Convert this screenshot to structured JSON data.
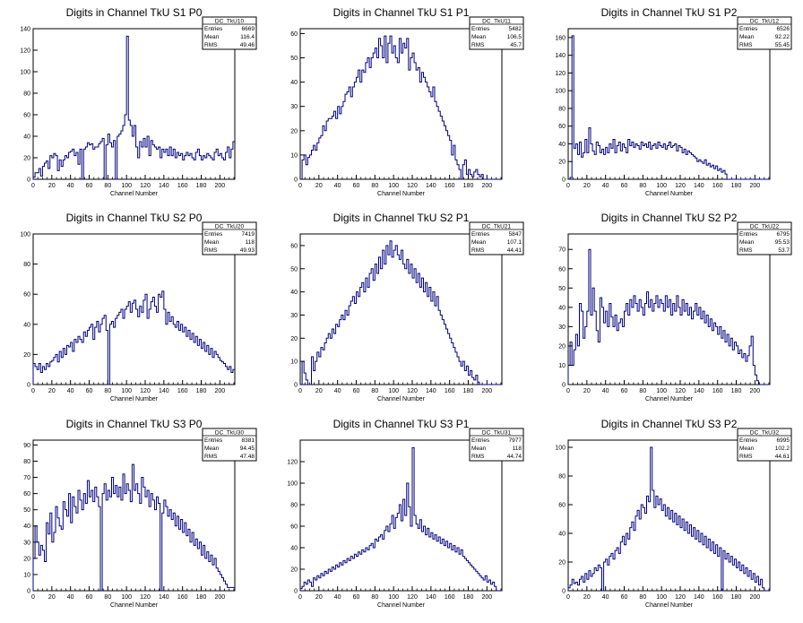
{
  "canvas": {
    "background": "#ffffff",
    "line_color": "#000080"
  },
  "chart_data": [
    {
      "type": "histogram",
      "title": "Digits in Channel TkU S1 P0",
      "xlabel": "Channel Number",
      "ylabel": "",
      "xlim": [
        0,
        216
      ],
      "ylim": [
        0,
        140
      ],
      "xticks": [
        0,
        20,
        40,
        60,
        80,
        100,
        120,
        140,
        160,
        180,
        200
      ],
      "yticks": [
        0,
        20,
        40,
        60,
        80,
        100,
        120,
        140
      ],
      "stats": {
        "name": "DC_TkU10",
        "entries": "6669",
        "mean": "116.4",
        "rms": "49.46"
      },
      "bin_width": 2,
      "values": [
        2,
        6,
        6,
        10,
        3,
        12,
        15,
        17,
        10,
        22,
        20,
        24,
        22,
        8,
        18,
        12,
        18,
        22,
        20,
        25,
        26,
        28,
        22,
        25,
        14,
        28,
        0,
        28,
        30,
        34,
        32,
        33,
        28,
        30,
        30,
        33,
        35,
        38,
        0,
        32,
        42,
        34,
        30,
        36,
        0,
        40,
        42,
        45,
        50,
        60,
        133,
        55,
        50,
        40,
        50,
        30,
        20,
        35,
        30,
        38,
        30,
        40,
        22,
        36,
        32,
        30,
        28,
        30,
        20,
        28,
        25,
        28,
        22,
        30,
        22,
        28,
        20,
        25,
        22,
        24,
        18,
        22,
        25,
        22,
        24,
        20,
        18,
        25,
        28,
        22,
        18,
        22,
        20,
        24,
        22,
        20,
        18,
        25,
        28,
        22,
        24,
        20,
        18,
        25,
        30,
        20,
        28,
        35
      ]
    },
    {
      "type": "histogram",
      "title": "Digits in Channel TkU S1 P1",
      "xlabel": "Channel Number",
      "ylabel": "",
      "xlim": [
        0,
        216
      ],
      "ylim": [
        0,
        62
      ],
      "xticks": [
        0,
        20,
        40,
        60,
        80,
        100,
        120,
        140,
        160,
        180,
        200
      ],
      "yticks": [
        0,
        10,
        20,
        30,
        40,
        50,
        60
      ],
      "stats": {
        "name": "DC_TkU11",
        "entries": "5482",
        "mean": "106.5",
        "rms": "45.7"
      },
      "bin_width": 2,
      "values": [
        0,
        8,
        10,
        6,
        9,
        10,
        12,
        14,
        12,
        15,
        17,
        18,
        22,
        20,
        24,
        25,
        25,
        26,
        28,
        25,
        30,
        27,
        30,
        32,
        35,
        36,
        38,
        34,
        38,
        40,
        42,
        45,
        40,
        45,
        44,
        48,
        50,
        46,
        50,
        52,
        54,
        50,
        58,
        55,
        50,
        59,
        48,
        56,
        59,
        52,
        55,
        50,
        48,
        58,
        52,
        56,
        54,
        58,
        45,
        50,
        52,
        48,
        45,
        46,
        40,
        44,
        42,
        40,
        38,
        36,
        34,
        38,
        32,
        30,
        28,
        26,
        24,
        22,
        20,
        18,
        16,
        10,
        14,
        8,
        6,
        4,
        0,
        6,
        8,
        2,
        4,
        2,
        1,
        3,
        4,
        2,
        1,
        2,
        0,
        0,
        0,
        0,
        0,
        0,
        0,
        0,
        0,
        0
      ]
    },
    {
      "type": "histogram",
      "title": "Digits in Channel TkU S1 P2",
      "xlabel": "Channel Number",
      "ylabel": "",
      "xlim": [
        0,
        216
      ],
      "ylim": [
        0,
        170
      ],
      "xticks": [
        0,
        20,
        40,
        60,
        80,
        100,
        120,
        140,
        160,
        180,
        200
      ],
      "yticks": [
        0,
        20,
        40,
        60,
        80,
        100,
        120,
        140,
        160
      ],
      "stats": {
        "name": "DC_TkU12",
        "entries": "6526",
        "mean": "92.22",
        "rms": "55.45"
      },
      "bin_width": 2,
      "values": [
        0,
        2,
        162,
        35,
        40,
        28,
        42,
        25,
        30,
        45,
        30,
        58,
        40,
        32,
        28,
        42,
        38,
        30,
        34,
        28,
        36,
        30,
        40,
        35,
        45,
        30,
        38,
        42,
        32,
        40,
        36,
        30,
        45,
        38,
        42,
        36,
        40,
        38,
        34,
        42,
        38,
        40,
        36,
        42,
        34,
        38,
        40,
        35,
        42,
        38,
        36,
        40,
        34,
        38,
        42,
        36,
        38,
        40,
        32,
        38,
        36,
        30,
        34,
        28,
        32,
        30,
        28,
        26,
        24,
        20,
        22,
        20,
        18,
        22,
        16,
        18,
        14,
        16,
        12,
        15,
        10,
        12,
        8,
        10,
        6,
        0,
        0,
        0,
        0,
        0,
        0,
        0,
        0,
        0,
        0,
        0,
        0,
        0,
        0,
        0,
        0,
        0,
        0,
        0,
        0,
        0,
        0,
        0
      ]
    },
    {
      "type": "histogram",
      "title": "Digits in Channel TkU S2 P0",
      "xlabel": "Channel Number",
      "ylabel": "",
      "xlim": [
        0,
        216
      ],
      "ylim": [
        0,
        100
      ],
      "xticks": [
        0,
        20,
        40,
        60,
        80,
        100,
        120,
        140,
        160,
        180,
        200
      ],
      "yticks": [
        0,
        20,
        40,
        60,
        80,
        100
      ],
      "stats": {
        "name": "DC_TkU20",
        "entries": "7419",
        "mean": "118",
        "rms": "49.93"
      },
      "bin_width": 2,
      "values": [
        14,
        12,
        10,
        14,
        8,
        12,
        10,
        14,
        12,
        15,
        16,
        18,
        20,
        15,
        22,
        18,
        24,
        20,
        26,
        25,
        28,
        22,
        30,
        28,
        32,
        30,
        28,
        35,
        32,
        36,
        38,
        40,
        30,
        38,
        42,
        35,
        40,
        44,
        46,
        36,
        0,
        40,
        42,
        38,
        44,
        46,
        48,
        50,
        44,
        50,
        52,
        55,
        48,
        54,
        56,
        50,
        45,
        52,
        48,
        56,
        60,
        44,
        50,
        55,
        58,
        52,
        48,
        60,
        58,
        62,
        50,
        40,
        48,
        42,
        45,
        40,
        38,
        42,
        36,
        40,
        35,
        38,
        32,
        36,
        30,
        34,
        28,
        32,
        26,
        30,
        24,
        28,
        22,
        26,
        20,
        24,
        18,
        22,
        20,
        18,
        16,
        15,
        14,
        12,
        10,
        12,
        8,
        10
      ]
    },
    {
      "type": "histogram",
      "title": "Digits in Channel TkU S2 P1",
      "xlabel": "Channel Number",
      "ylabel": "",
      "xlim": [
        0,
        216
      ],
      "ylim": [
        0,
        65
      ],
      "xticks": [
        0,
        20,
        40,
        60,
        80,
        100,
        120,
        140,
        160,
        180,
        200
      ],
      "yticks": [
        0,
        10,
        20,
        30,
        40,
        50,
        60
      ],
      "stats": {
        "name": "DC_TkU21",
        "entries": "5847",
        "mean": "107.1",
        "rms": "44.41"
      },
      "bin_width": 2,
      "values": [
        0,
        10,
        5,
        2,
        0,
        0,
        12,
        6,
        10,
        14,
        12,
        16,
        15,
        18,
        20,
        22,
        20,
        24,
        22,
        26,
        25,
        28,
        30,
        28,
        32,
        30,
        34,
        36,
        38,
        35,
        40,
        38,
        42,
        44,
        40,
        46,
        42,
        48,
        50,
        45,
        52,
        48,
        55,
        50,
        58,
        52,
        60,
        56,
        62,
        55,
        58,
        60,
        56,
        54,
        58,
        52,
        50,
        54,
        48,
        52,
        46,
        50,
        44,
        48,
        42,
        46,
        40,
        44,
        38,
        42,
        36,
        40,
        34,
        38,
        32,
        30,
        28,
        26,
        24,
        22,
        20,
        18,
        16,
        14,
        12,
        10,
        8,
        10,
        6,
        8,
        4,
        6,
        3,
        2,
        4,
        1,
        0,
        0,
        0,
        0,
        0,
        0,
        0,
        0,
        0,
        0,
        0,
        0
      ]
    },
    {
      "type": "histogram",
      "title": "Digits in Channel TkU S2 P2",
      "xlabel": "Channel Number",
      "ylabel": "",
      "xlim": [
        0,
        216
      ],
      "ylim": [
        0,
        78
      ],
      "xticks": [
        0,
        20,
        40,
        60,
        80,
        100,
        120,
        140,
        160,
        180,
        200
      ],
      "yticks": [
        0,
        10,
        20,
        30,
        40,
        50,
        60,
        70
      ],
      "stats": {
        "name": "DC_TkU22",
        "entries": "6795",
        "mean": "95.53",
        "rms": "53.7"
      },
      "bin_width": 2,
      "values": [
        10,
        22,
        10,
        18,
        26,
        20,
        42,
        38,
        24,
        30,
        38,
        70,
        36,
        50,
        38,
        28,
        22,
        45,
        40,
        32,
        38,
        30,
        42,
        35,
        30,
        36,
        28,
        32,
        34,
        30,
        38,
        42,
        36,
        44,
        40,
        46,
        42,
        38,
        44,
        40,
        36,
        42,
        48,
        40,
        44,
        38,
        42,
        46,
        40,
        44,
        42,
        38,
        46,
        40,
        44,
        36,
        42,
        38,
        46,
        40,
        36,
        44,
        38,
        42,
        36,
        40,
        34,
        38,
        42,
        36,
        40,
        34,
        38,
        32,
        36,
        30,
        34,
        28,
        32,
        30,
        26,
        30,
        24,
        28,
        22,
        26,
        20,
        24,
        18,
        22,
        20,
        16,
        18,
        14,
        16,
        12,
        15,
        20,
        25,
        10,
        5,
        2,
        0,
        0,
        0,
        0,
        0,
        0
      ]
    },
    {
      "type": "histogram",
      "title": "Digits in Channel TkU S3 P0",
      "xlabel": "Channel Number",
      "ylabel": "",
      "xlim": [
        0,
        216
      ],
      "ylim": [
        0,
        93
      ],
      "xticks": [
        0,
        20,
        40,
        60,
        80,
        100,
        120,
        140,
        160,
        180,
        200
      ],
      "yticks": [
        0,
        10,
        20,
        30,
        40,
        50,
        60,
        70,
        80,
        90
      ],
      "stats": {
        "name": "DC_TkU30",
        "entries": "8381",
        "mean": "94.45",
        "rms": "47.48"
      },
      "bin_width": 2,
      "values": [
        20,
        40,
        30,
        22,
        28,
        25,
        18,
        42,
        35,
        48,
        30,
        36,
        52,
        45,
        40,
        38,
        55,
        50,
        46,
        60,
        42,
        58,
        52,
        48,
        62,
        56,
        50,
        60,
        54,
        68,
        58,
        62,
        55,
        64,
        58,
        52,
        0,
        60,
        66,
        56,
        62,
        58,
        70,
        60,
        65,
        58,
        64,
        56,
        72,
        60,
        66,
        62,
        55,
        78,
        62,
        66,
        60,
        54,
        70,
        64,
        58,
        62,
        52,
        60,
        56,
        50,
        58,
        54,
        0,
        48,
        56,
        52,
        46,
        50,
        44,
        48,
        40,
        46,
        38,
        44,
        36,
        42,
        34,
        38,
        30,
        36,
        28,
        32,
        26,
        30,
        22,
        28,
        20,
        24,
        18,
        22,
        16,
        20,
        14,
        12,
        10,
        8,
        6,
        4,
        2,
        2,
        2,
        2
      ]
    },
    {
      "type": "histogram",
      "title": "Digits in Channel TkU S3 P1",
      "xlabel": "Channel Number",
      "ylabel": "",
      "xlim": [
        0,
        216
      ],
      "ylim": [
        0,
        140
      ],
      "xticks": [
        0,
        20,
        40,
        60,
        80,
        100,
        120,
        140,
        160,
        180,
        200
      ],
      "yticks": [
        0,
        20,
        40,
        60,
        80,
        100,
        120
      ],
      "stats": {
        "name": "DC_TkU31",
        "entries": "7977",
        "mean": "118",
        "rms": "44.74"
      },
      "bin_width": 2,
      "values": [
        2,
        4,
        8,
        6,
        10,
        8,
        4,
        12,
        10,
        14,
        12,
        16,
        14,
        18,
        16,
        20,
        18,
        22,
        20,
        24,
        22,
        26,
        24,
        28,
        26,
        30,
        28,
        32,
        30,
        34,
        32,
        36,
        34,
        38,
        36,
        40,
        38,
        42,
        44,
        40,
        48,
        46,
        50,
        52,
        48,
        56,
        60,
        55,
        62,
        70,
        58,
        68,
        72,
        80,
        65,
        85,
        70,
        100,
        78,
        60,
        133,
        70,
        62,
        58,
        66,
        55,
        60,
        52,
        58,
        50,
        54,
        48,
        52,
        46,
        50,
        44,
        48,
        42,
        46,
        40,
        44,
        38,
        42,
        36,
        40,
        34,
        38,
        32,
        30,
        28,
        26,
        24,
        22,
        20,
        18,
        16,
        14,
        12,
        10,
        14,
        8,
        10,
        6,
        8,
        4,
        0,
        0,
        0
      ]
    },
    {
      "type": "histogram",
      "title": "Digits in Channel TkU S3 P2",
      "xlabel": "Channel Number",
      "ylabel": "",
      "xlim": [
        0,
        216
      ],
      "ylim": [
        0,
        105
      ],
      "xticks": [
        0,
        20,
        40,
        60,
        80,
        100,
        120,
        140,
        160,
        180,
        200
      ],
      "yticks": [
        0,
        20,
        40,
        60,
        80,
        100
      ],
      "stats": {
        "name": "DC_TkU32",
        "entries": "6995",
        "mean": "102.2",
        "rms": "44.61"
      },
      "bin_width": 2,
      "values": [
        2,
        4,
        8,
        5,
        6,
        4,
        8,
        10,
        6,
        12,
        8,
        14,
        10,
        12,
        16,
        14,
        18,
        16,
        0,
        20,
        22,
        18,
        24,
        26,
        22,
        28,
        30,
        26,
        34,
        38,
        32,
        40,
        36,
        44,
        48,
        42,
        52,
        56,
        50,
        60,
        58,
        54,
        66,
        62,
        100,
        70,
        58,
        66,
        60,
        64,
        56,
        60,
        52,
        58,
        50,
        56,
        48,
        54,
        46,
        52,
        44,
        50,
        42,
        48,
        40,
        46,
        38,
        44,
        36,
        42,
        34,
        40,
        32,
        38,
        30,
        36,
        28,
        34,
        26,
        32,
        24,
        30,
        0,
        28,
        22,
        26,
        20,
        24,
        18,
        22,
        16,
        20,
        14,
        18,
        12,
        16,
        10,
        14,
        8,
        12,
        6,
        10,
        4,
        8,
        2,
        0,
        0,
        0
      ]
    }
  ],
  "stats_labels": {
    "entries": "Entries",
    "mean": "Mean",
    "rms": "RMS"
  }
}
